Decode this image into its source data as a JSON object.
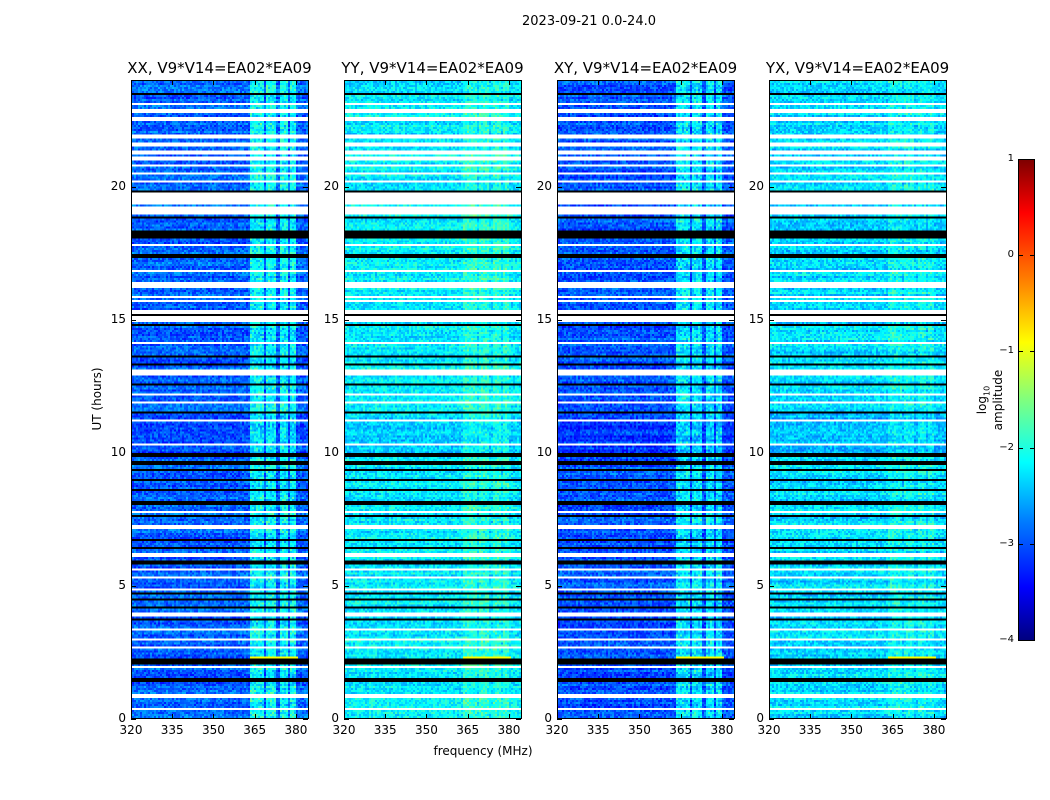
{
  "chart_data": {
    "type": "heatmap",
    "title": "2023-09-21 0.0-24.0",
    "xlabel": "frequency (MHz)",
    "ylabel": "UT (hours)",
    "xlim": [
      320,
      384.4
    ],
    "ylim": [
      0,
      24
    ],
    "xticks": [
      "320",
      "335",
      "350",
      "365",
      "380"
    ],
    "xtick_values": [
      320,
      335,
      350,
      365,
      380
    ],
    "yticks": [
      "0",
      "5",
      "10",
      "15",
      "20"
    ],
    "ytick_values": [
      0,
      5,
      10,
      15,
      20
    ],
    "panels": [
      {
        "title": "XX, V9*V14=EA02*EA09",
        "base_log_amp": -2.9,
        "band_boost": 0.9
      },
      {
        "title": "YY, V9*V14=EA02*EA09",
        "base_log_amp": -2.2,
        "band_boost": 0.3
      },
      {
        "title": "XY, V9*V14=EA02*EA09",
        "base_log_amp": -2.95,
        "band_boost": 0.85
      },
      {
        "title": "YX, V9*V14=EA02*EA09",
        "base_log_amp": -2.3,
        "band_boost": 0.25
      }
    ],
    "rfi_band_MHz": [
      [
        363,
        368
      ],
      [
        369,
        373
      ],
      [
        374,
        377
      ],
      [
        378,
        380
      ]
    ],
    "flagged_hours_white": [
      [
        19.38,
        19.8
      ],
      [
        18.95,
        19.25
      ],
      [
        16.18,
        16.45
      ],
      [
        14.95,
        15.35
      ],
      [
        12.9,
        13.15
      ],
      [
        23.13
      ],
      [
        22.87
      ],
      [
        22.57
      ],
      [
        21.89
      ],
      [
        21.59
      ],
      [
        21.29
      ],
      [
        21.07
      ],
      [
        20.8
      ],
      [
        20.5
      ],
      [
        20.2
      ],
      [
        17.8
      ],
      [
        16.86
      ],
      [
        15.88
      ],
      [
        15.73
      ],
      [
        14.16
      ],
      [
        12.2
      ],
      [
        11.9
      ],
      [
        11.23
      ],
      [
        10.33
      ],
      [
        7.77
      ],
      [
        7.21
      ],
      [
        6.16
      ],
      [
        5.6
      ],
      [
        5.3
      ],
      [
        4.84
      ],
      [
        3.9
      ],
      [
        3.34
      ],
      [
        2.97
      ],
      [
        2.67
      ],
      [
        1.92
      ],
      [
        0.83
      ],
      [
        0.34
      ]
    ],
    "black_hours": [
      23.5,
      19.86,
      18.85,
      18.29,
      18.14,
      17.39,
      15.17,
      14.8,
      13.59,
      13.29,
      12.57,
      11.53,
      9.91,
      9.61,
      9.35,
      8.97,
      8.6,
      8.11,
      7.59,
      6.72,
      6.42,
      5.86,
      4.69,
      4.47,
      4.17,
      3.72,
      2.22,
      2.1,
      1.43
    ],
    "colorbar": {
      "label": "log10 amplitude",
      "label_main": "log",
      "label_sub": "10",
      "label_rest": " amplitude",
      "range": [
        -4,
        1
      ],
      "ticks": [
        "−4",
        "−3",
        "−2",
        "−1",
        "0",
        "1"
      ],
      "tick_values": [
        -4,
        -3,
        -2,
        -1,
        0,
        1
      ],
      "colormap": "jet"
    }
  }
}
